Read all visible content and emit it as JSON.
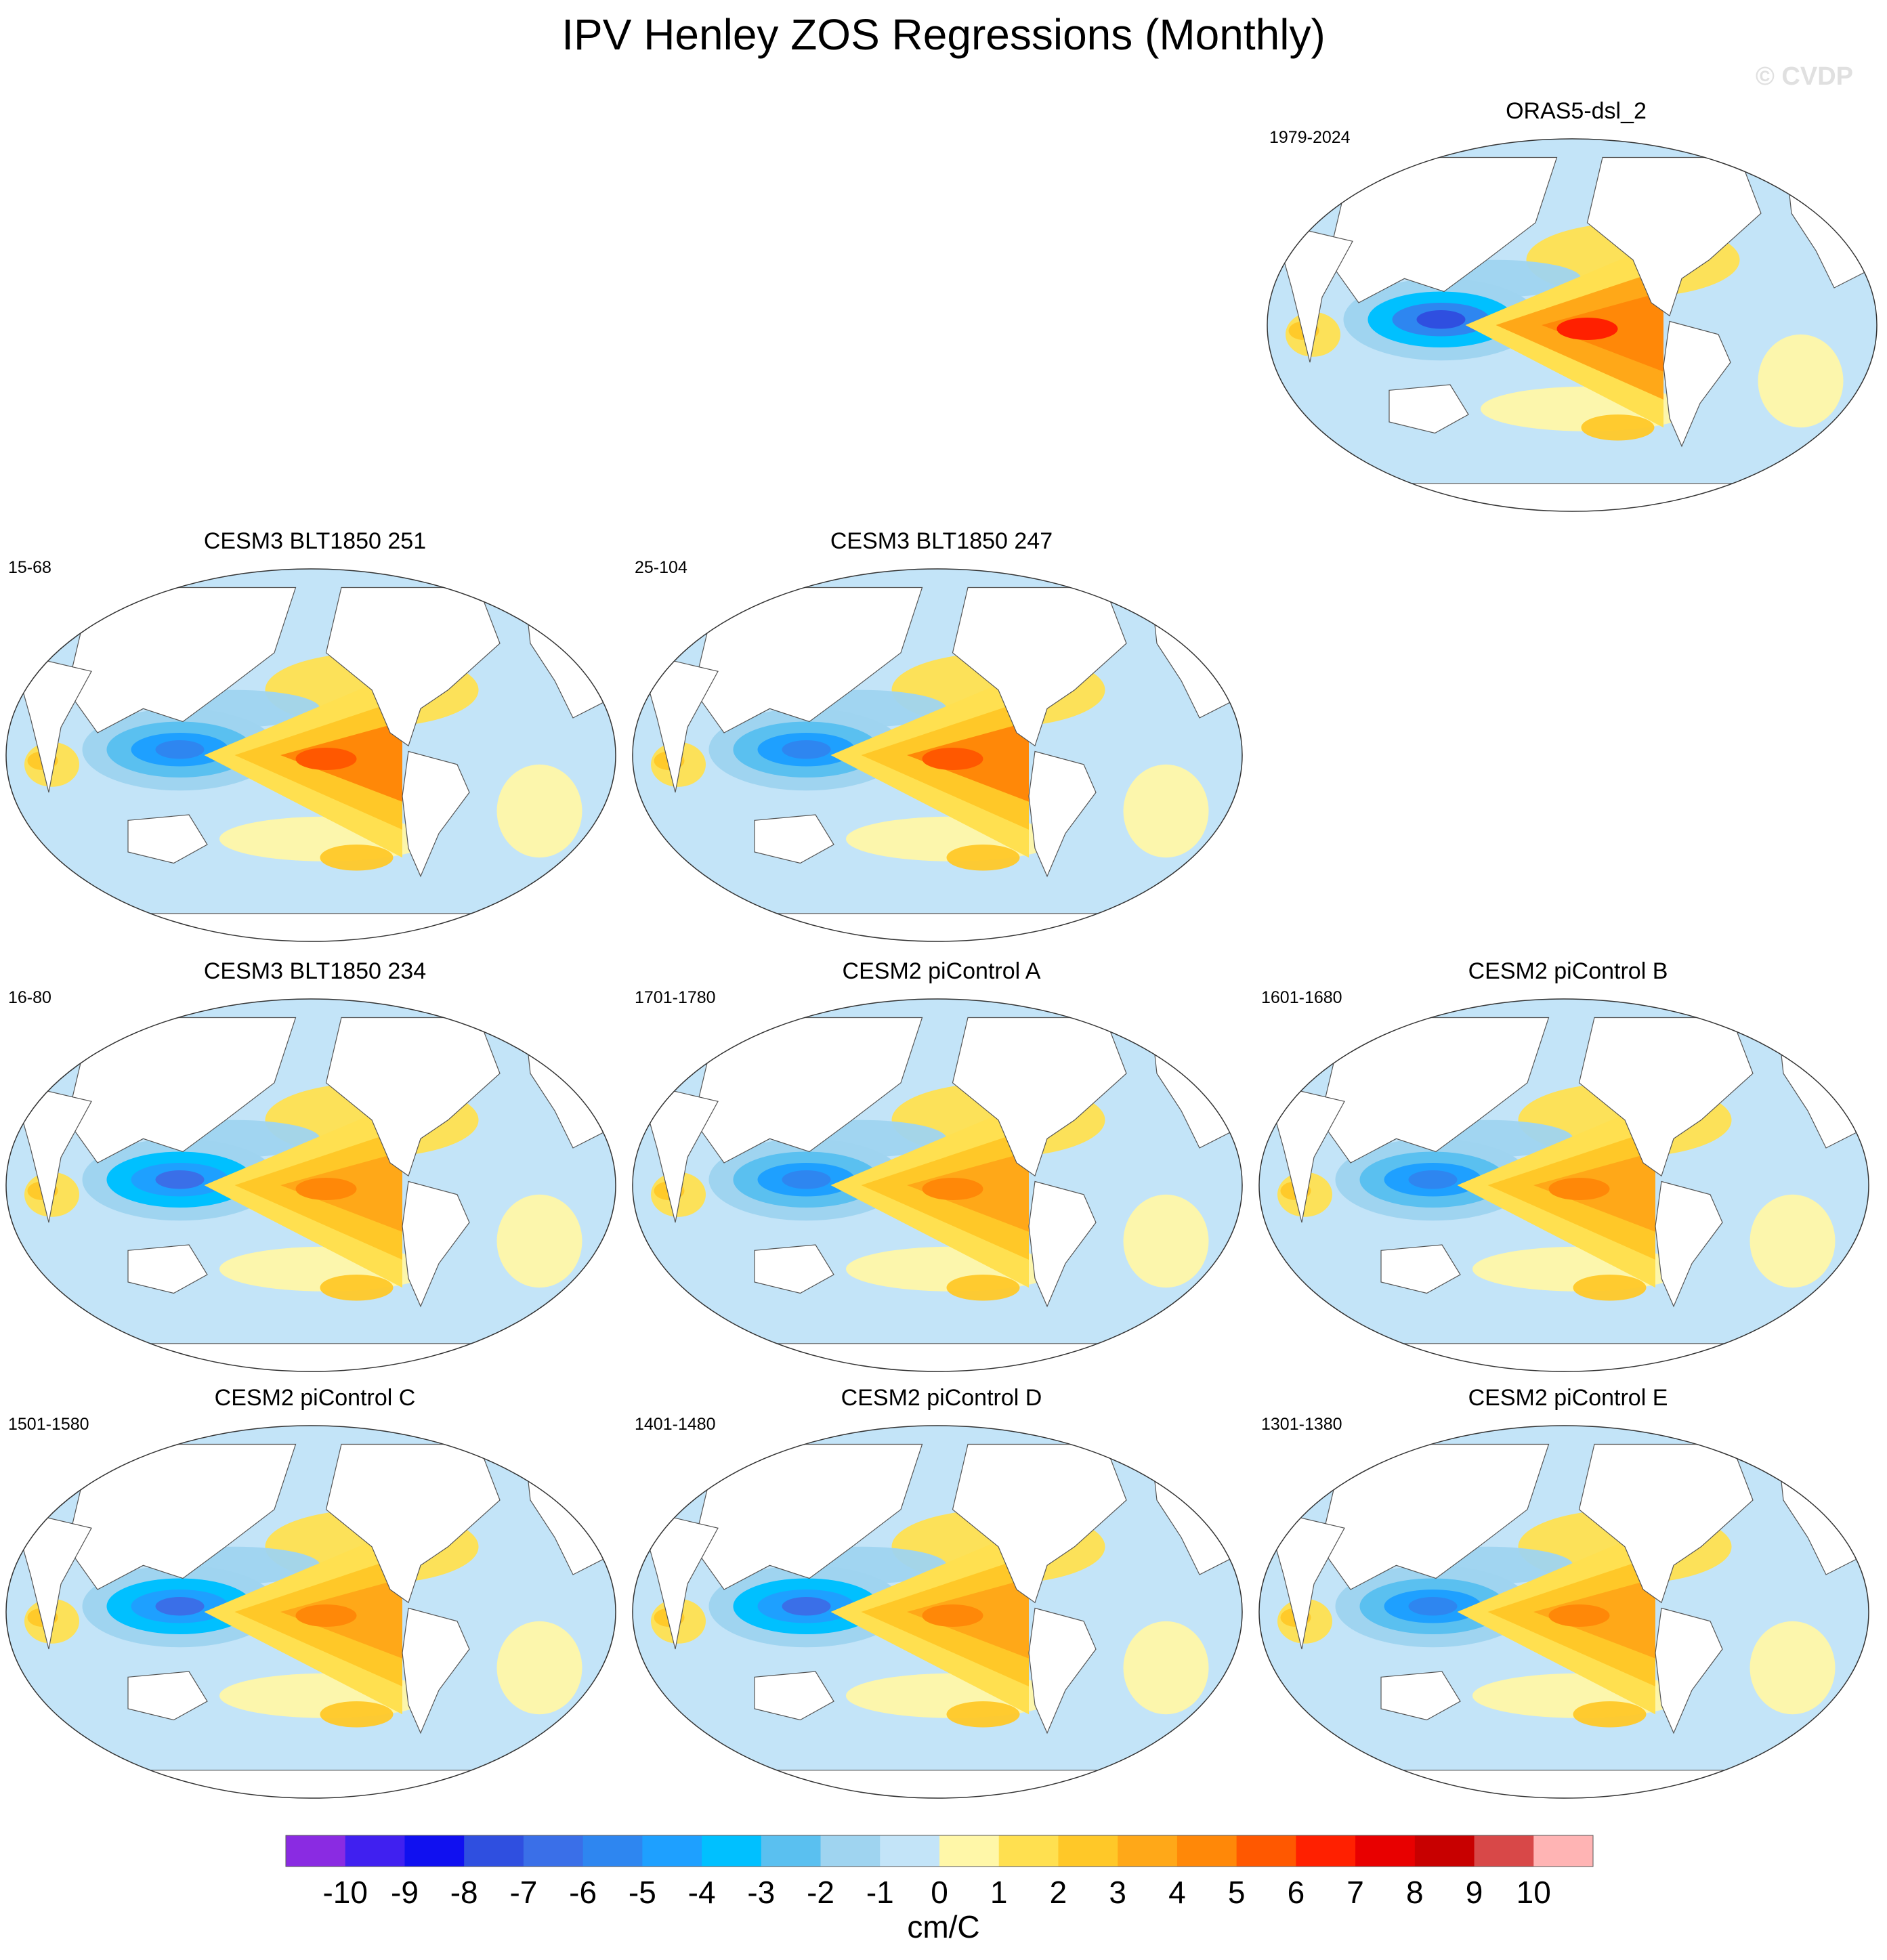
{
  "title": "IPV Henley ZOS Regressions (Monthly)",
  "watermark": "© CVDP",
  "chart_data": {
    "type": "filled-contour-map",
    "projection": "Robinson (Pacific-centered)",
    "variable": "ZOS regression on IPV Henley index",
    "units": "cm/C",
    "panels": [
      {
        "id": "orass5",
        "title": "ORAS5-dsl_2",
        "period": "1979-2024",
        "east_pacific_max": 6,
        "west_pacific_min": -8
      },
      {
        "id": "blt251",
        "title": "CESM3 BLT1850 251",
        "period": "15-68",
        "east_pacific_max": 5,
        "west_pacific_min": -6
      },
      {
        "id": "blt247",
        "title": "CESM3 BLT1850 247",
        "period": "25-104",
        "east_pacific_max": 5,
        "west_pacific_min": -6
      },
      {
        "id": "blt234",
        "title": "CESM3 BLT1850 234",
        "period": "16-80",
        "east_pacific_max": 4,
        "west_pacific_min": -7
      },
      {
        "id": "picA",
        "title": "CESM2 piControl A",
        "period": "1701-1780",
        "east_pacific_max": 4,
        "west_pacific_min": -6
      },
      {
        "id": "picB",
        "title": "CESM2 piControl B",
        "period": "1601-1680",
        "east_pacific_max": 4,
        "west_pacific_min": -6
      },
      {
        "id": "picC",
        "title": "CESM2 piControl C",
        "period": "1501-1580",
        "east_pacific_max": 4,
        "west_pacific_min": -7
      },
      {
        "id": "picD",
        "title": "CESM2 piControl D",
        "period": "1401-1480",
        "east_pacific_max": 4,
        "west_pacific_min": -7
      },
      {
        "id": "picE",
        "title": "CESM2 piControl E",
        "period": "1301-1380",
        "east_pacific_max": 4,
        "west_pacific_min": -6
      }
    ],
    "colorbar": {
      "label": "cm/C",
      "tick_labels": [
        "-10",
        "-9",
        "-8",
        "-7",
        "-6",
        "-5",
        "-4",
        "-3",
        "-2",
        "-1",
        "0",
        "1",
        "2",
        "3",
        "4",
        "5",
        "6",
        "7",
        "8",
        "9",
        "10"
      ],
      "colors": [
        "#8a2be2",
        "#4020f0",
        "#1010f0",
        "#2f4fe0",
        "#3a6fe8",
        "#2e86f0",
        "#1ea0ff",
        "#00c0ff",
        "#5ac0f0",
        "#9fd4f0",
        "#c3e4f8",
        "#fff7a8",
        "#ffe050",
        "#ffc828",
        "#ffa818",
        "#ff8808",
        "#ff5800",
        "#ff2000",
        "#e80000",
        "#c80000",
        "#d84848",
        "#ffb4b4"
      ]
    }
  }
}
